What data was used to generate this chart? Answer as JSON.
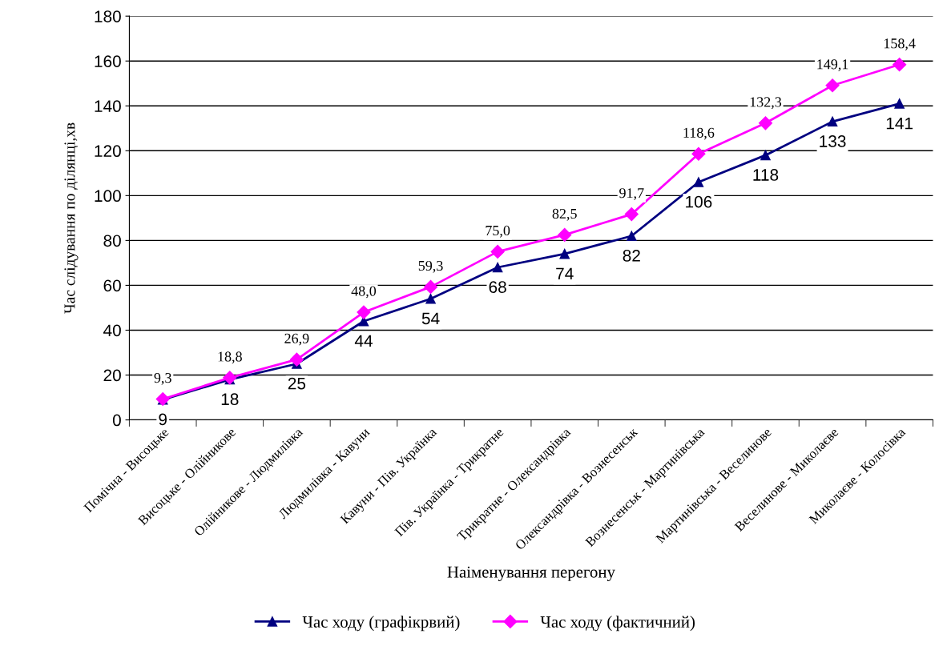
{
  "chart_data": {
    "type": "line",
    "xlabel": "Наіменування перегону",
    "ylabel": "Час слідування по ділянці,хв",
    "categories": [
      "Помічна - Висоцьке",
      "Висоцьке - Олійникове",
      "Олійникове - Людмилівка",
      "Людмилівка - Кавуни",
      "Кавуни - Пів. Українка",
      "Пів. Українка - Трикратне",
      "Трикратне - Олександрівка",
      "Олександрівка - Вознесенськ",
      "Вознесенськ - Мартинівська",
      "Мартинівська - Веселинове",
      "Веселинове - Миколаєве",
      "Миколаєве - Колосівка"
    ],
    "series": [
      {
        "name": "Час ходу (графікрвий)",
        "color": "#000080",
        "marker": "triangle",
        "values": [
          9,
          18,
          25,
          44,
          54,
          68,
          74,
          82,
          106,
          118,
          133,
          141
        ],
        "value_labels": [
          "9",
          "18",
          "25",
          "44",
          "54",
          "68",
          "74",
          "82",
          "106",
          "118",
          "133",
          "141"
        ]
      },
      {
        "name": "Час ходу (фактичний)",
        "color": "#ff00ff",
        "marker": "diamond",
        "values": [
          9.3,
          18.8,
          26.9,
          48.0,
          59.3,
          75.0,
          82.5,
          91.7,
          118.6,
          132.3,
          149.1,
          158.4
        ],
        "value_labels": [
          "9,3",
          "18,8",
          "26,9",
          "48,0",
          "59,3",
          "75,0",
          "82,5",
          "91,7",
          "118,6",
          "132,3",
          "149,1",
          "158,4"
        ]
      }
    ],
    "ylim": [
      0,
      180
    ],
    "yticks": [
      0,
      20,
      40,
      60,
      80,
      100,
      120,
      140,
      160,
      180
    ],
    "grid": "y",
    "legend": "bottom",
    "line_style": "solid"
  }
}
